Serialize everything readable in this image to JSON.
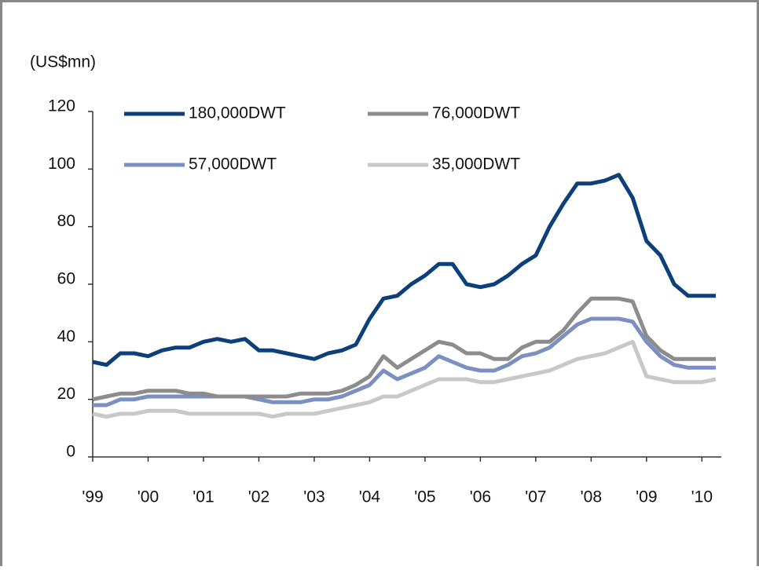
{
  "chart_data": {
    "type": "line",
    "y_label": "(US$mn)",
    "x": [
      1999,
      1999.25,
      1999.5,
      1999.75,
      2000,
      2000.25,
      2000.5,
      2000.75,
      2001,
      2001.25,
      2001.5,
      2001.75,
      2002,
      2002.25,
      2002.5,
      2002.75,
      2003,
      2003.25,
      2003.5,
      2003.75,
      2004,
      2004.25,
      2004.5,
      2004.75,
      2005,
      2005.25,
      2005.5,
      2005.75,
      2006,
      2006.25,
      2006.5,
      2006.75,
      2007,
      2007.25,
      2007.5,
      2007.75,
      2008,
      2008.25,
      2008.5,
      2008.75,
      2009,
      2009.25,
      2009.5,
      2009.75,
      2010,
      2010.25
    ],
    "series": [
      {
        "name": "180,000DWT",
        "color": "#0d3f7a",
        "values": [
          33,
          32,
          36,
          36,
          35,
          37,
          38,
          38,
          40,
          41,
          40,
          41,
          37,
          37,
          36,
          35,
          34,
          36,
          37,
          39,
          48,
          55,
          56,
          60,
          63,
          67,
          67,
          60,
          59,
          60,
          63,
          67,
          70,
          80,
          88,
          95,
          95,
          96,
          98,
          90,
          75,
          70,
          60,
          56,
          56,
          56
        ]
      },
      {
        "name": "76,000DWT",
        "color": "#8c8c8c",
        "values": [
          20,
          21,
          22,
          22,
          23,
          23,
          23,
          22,
          22,
          21,
          21,
          21,
          21,
          21,
          21,
          22,
          22,
          22,
          23,
          25,
          28,
          35,
          31,
          34,
          37,
          40,
          39,
          36,
          36,
          34,
          34,
          38,
          40,
          40,
          44,
          50,
          55,
          55,
          55,
          54,
          42,
          37,
          34,
          34,
          34,
          34
        ]
      },
      {
        "name": "57,000DWT",
        "color": "#7b8fc0",
        "values": [
          18,
          18,
          20,
          20,
          21,
          21,
          21,
          21,
          21,
          21,
          21,
          21,
          20,
          19,
          19,
          19,
          20,
          20,
          21,
          23,
          25,
          30,
          27,
          29,
          31,
          35,
          33,
          31,
          30,
          30,
          32,
          35,
          36,
          38,
          42,
          46,
          48,
          48,
          48,
          47,
          40,
          35,
          32,
          31,
          31,
          31
        ]
      },
      {
        "name": "35,000DWT",
        "color": "#c8c8c8",
        "values": [
          15,
          14,
          15,
          15,
          16,
          16,
          16,
          15,
          15,
          15,
          15,
          15,
          15,
          14,
          15,
          15,
          15,
          16,
          17,
          18,
          19,
          21,
          21,
          23,
          25,
          27,
          27,
          27,
          26,
          26,
          27,
          28,
          29,
          30,
          32,
          34,
          35,
          36,
          38,
          40,
          28,
          27,
          26,
          26,
          26,
          27
        ]
      }
    ],
    "xlim": [
      1999,
      2010.35
    ],
    "xticks": [
      {
        "value": 1999,
        "label": "'99"
      },
      {
        "value": 2000,
        "label": "'00"
      },
      {
        "value": 2001,
        "label": "'01"
      },
      {
        "value": 2002,
        "label": "'02"
      },
      {
        "value": 2003,
        "label": "'03"
      },
      {
        "value": 2004,
        "label": "'04"
      },
      {
        "value": 2005,
        "label": "'05"
      },
      {
        "value": 2006,
        "label": "'06"
      },
      {
        "value": 2007,
        "label": "'07"
      },
      {
        "value": 2008,
        "label": "'08"
      },
      {
        "value": 2009,
        "label": "'09"
      },
      {
        "value": 2010,
        "label": "'10"
      }
    ],
    "ylim": [
      0,
      120
    ],
    "yticks": [
      0,
      20,
      40,
      60,
      80,
      100,
      120
    ],
    "grid": false
  }
}
